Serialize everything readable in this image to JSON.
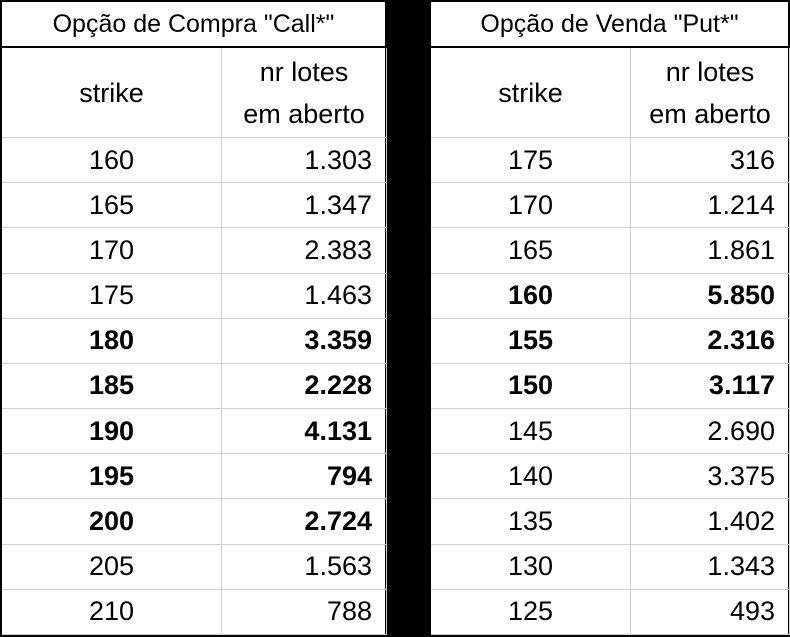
{
  "tables": [
    {
      "title": "Opção de Compra \"Call*\"",
      "columns": [
        [
          "strike"
        ],
        [
          "nr lotes",
          "em aberto"
        ]
      ],
      "rows": [
        [
          "160",
          "1.303"
        ],
        [
          "165",
          "1.347"
        ],
        [
          "170",
          "2.383"
        ],
        [
          "175",
          "1.463"
        ],
        [
          "180",
          "3.359"
        ],
        [
          "185",
          "2.228"
        ],
        [
          "190",
          "4.131"
        ],
        [
          "195",
          "794"
        ],
        [
          "200",
          "2.724"
        ],
        [
          "205",
          "1.563"
        ],
        [
          "210",
          "788"
        ]
      ],
      "bold_rows": [
        4,
        5,
        6,
        7,
        8
      ]
    },
    {
      "title": "Opção de Venda \"Put*\"",
      "columns": [
        [
          "strike"
        ],
        [
          "nr lotes",
          "em aberto"
        ]
      ],
      "rows": [
        [
          "175",
          "316"
        ],
        [
          "170",
          "1.214"
        ],
        [
          "165",
          "1.861"
        ],
        [
          "160",
          "5.850"
        ],
        [
          "155",
          "2.316"
        ],
        [
          "150",
          "3.117"
        ],
        [
          "145",
          "2.690"
        ],
        [
          "140",
          "3.375"
        ],
        [
          "135",
          "1.402"
        ],
        [
          "130",
          "1.343"
        ],
        [
          "125",
          "493"
        ]
      ],
      "bold_rows": [
        3,
        4,
        5
      ]
    }
  ]
}
